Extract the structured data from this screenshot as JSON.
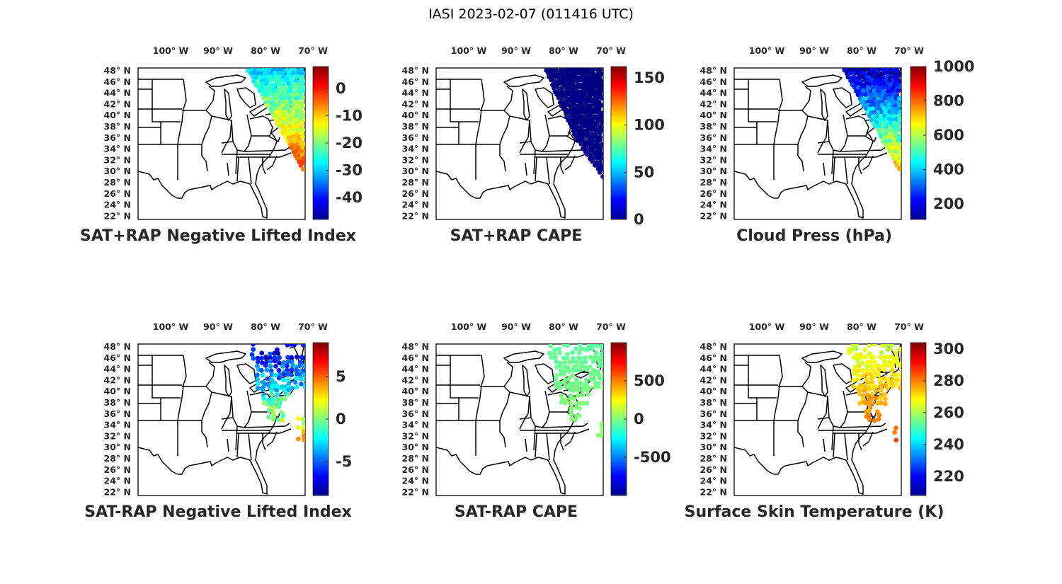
{
  "figure": {
    "title": "IASI 2023-02-07 (011416 UTC)"
  },
  "lat_labels": [
    "48° N",
    "46° N",
    "44° N",
    "42° N",
    "40° N",
    "38° N",
    "36° N",
    "34° N",
    "32° N",
    "30° N",
    "28° N",
    "26° N",
    "24° N",
    "22° N"
  ],
  "lon_labels": [
    "100° W",
    "90° W",
    "80° W",
    "70° W"
  ],
  "colormap": "jet",
  "panels": [
    {
      "title": "SAT+RAP Negative Lifted Index",
      "colorbar": {
        "min": -48,
        "max": 8,
        "ticks": [
          0,
          -10,
          -20,
          -30,
          -40
        ],
        "labels": [
          "0",
          "-10",
          "-20",
          "-30",
          "-40"
        ]
      },
      "coverage": "north_and_ocean_swath",
      "value_range": [
        -30,
        2
      ]
    },
    {
      "title": "SAT+RAP CAPE",
      "colorbar": {
        "min": 0,
        "max": 162,
        "ticks": [
          150,
          100,
          50,
          0
        ],
        "labels": [
          "150",
          "100",
          "50",
          "0"
        ]
      },
      "coverage": "east_swath",
      "value_range": [
        0,
        2
      ]
    },
    {
      "title": "Cloud Press (hPa)",
      "colorbar": {
        "min": 110,
        "max": 1000,
        "ticks": [
          1000,
          800,
          600,
          400,
          200
        ],
        "labels": [
          "1000",
          "800",
          "600",
          "400",
          "200"
        ]
      },
      "coverage": "north_and_ocean_swath",
      "value_range": [
        150,
        800
      ]
    },
    {
      "title": "SAT-RAP Negative Lifted Index",
      "colorbar": {
        "min": -9,
        "max": 9,
        "ticks": [
          5,
          0,
          -5
        ],
        "labels": [
          "5",
          "0",
          "-5"
        ]
      },
      "coverage": "northeast_clusters",
      "value_range": [
        -8,
        6
      ]
    },
    {
      "title": "SAT-RAP CAPE",
      "colorbar": {
        "min": -1000,
        "max": 1000,
        "ticks": [
          500,
          0,
          -500
        ],
        "labels": [
          "500",
          "0",
          "-500"
        ]
      },
      "coverage": "northeast_clusters",
      "value_range": [
        -60,
        60
      ]
    },
    {
      "title": "Surface Skin Temperature (K)",
      "colorbar": {
        "min": 208,
        "max": 304,
        "ticks": [
          300,
          280,
          260,
          240,
          220
        ],
        "labels": [
          "300",
          "280",
          "260",
          "240",
          "220"
        ]
      },
      "coverage": "northeast_clusters",
      "value_range": [
        262,
        290
      ]
    }
  ]
}
